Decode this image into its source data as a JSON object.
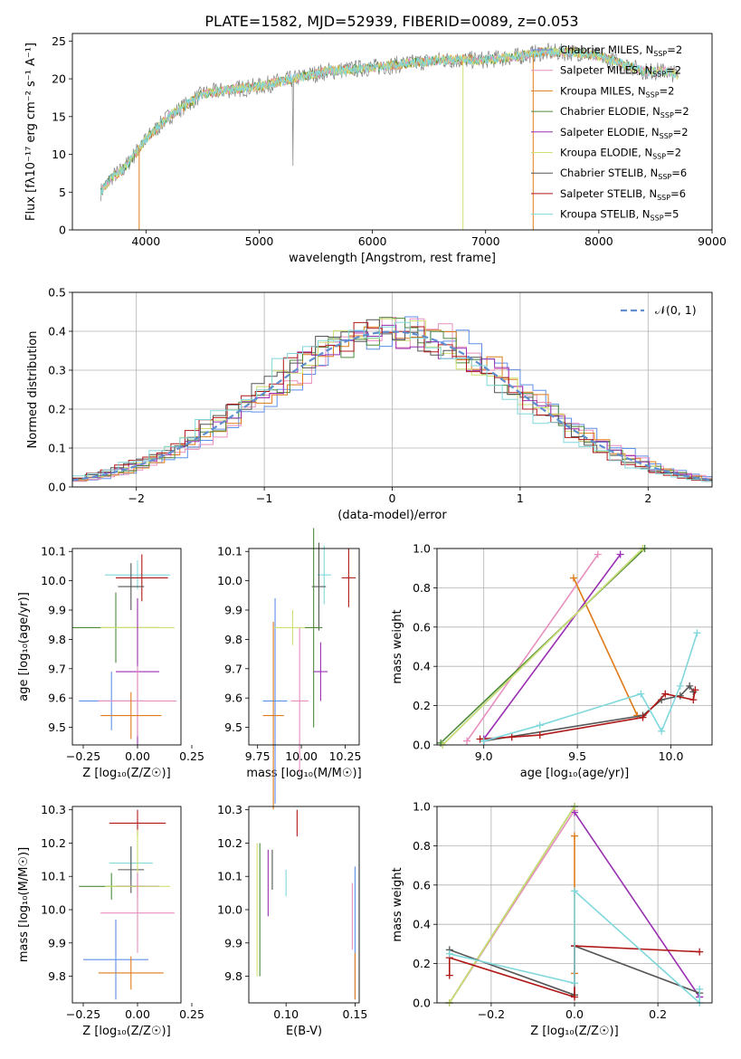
{
  "figure_title": "PLATE=1582, MJD=52939, FIBERID=0089, z=0.053",
  "colors": {
    "Chabrier MILES": "#5f8fe8",
    "Salpeter MILES": "#e88fbf",
    "Kroupa MILES": "#e07b1a",
    "Chabrier ELODIE": "#4c8a3c",
    "Salpeter ELODIE": "#9a2fb2",
    "Kroupa ELODIE": "#cfe070",
    "Chabrier STELIB": "#555555",
    "Salpeter STELIB": "#b01818",
    "Kroupa STELIB": "#80d8dc",
    "data": "#808080",
    "normal": "#5f8fd0"
  },
  "legend_entries": [
    {
      "name": "Chabrier MILES, N",
      "sub": "SSP",
      "tail": "=2",
      "key": "Chabrier MILES"
    },
    {
      "name": "Salpeter MILES, N",
      "sub": "SSP",
      "tail": "=2",
      "key": "Salpeter MILES"
    },
    {
      "name": "Kroupa MILES, N",
      "sub": "SSP",
      "tail": "=2",
      "key": "Kroupa MILES"
    },
    {
      "name": "Chabrier ELODIE, N",
      "sub": "SSP",
      "tail": "=2",
      "key": "Chabrier ELODIE"
    },
    {
      "name": "Salpeter ELODIE, N",
      "sub": "SSP",
      "tail": "=2",
      "key": "Salpeter ELODIE"
    },
    {
      "name": "Kroupa ELODIE, N",
      "sub": "SSP",
      "tail": "=2",
      "key": "Kroupa ELODIE"
    },
    {
      "name": "Chabrier STELIB, N",
      "sub": "SSP",
      "tail": "=6",
      "key": "Chabrier STELIB"
    },
    {
      "name": "Salpeter STELIB, N",
      "sub": "SSP",
      "tail": "=6",
      "key": "Salpeter STELIB"
    },
    {
      "name": "Kroupa STELIB, N",
      "sub": "SSP",
      "tail": "=5",
      "key": "Kroupa STELIB"
    }
  ],
  "chart_data": [
    {
      "id": "spectrum",
      "type": "line",
      "xlabel": "wavelength [Angstrom, rest frame]",
      "ylabel": "Flux [fλ10⁻¹⁷ erg cm⁻² s⁻¹ A⁻¹]",
      "xlim": [
        3350,
        9000
      ],
      "ylim": [
        0,
        26
      ],
      "xticks": [
        4000,
        5000,
        6000,
        7000,
        8000,
        9000
      ],
      "yticks": [
        0,
        5,
        10,
        15,
        20,
        25
      ],
      "legend": "top-right",
      "grid": false,
      "continuum_x": [
        3600,
        3700,
        3800,
        3900,
        4000,
        4100,
        4200,
        4300,
        4400,
        4500,
        4700,
        5000,
        5300,
        5600,
        6000,
        6300,
        6600,
        7000,
        7300,
        7500,
        7800,
        8000,
        8200,
        8400,
        8600,
        8700
      ],
      "continuum_y": [
        5,
        7,
        8,
        10,
        12,
        13.5,
        15,
        16,
        17,
        18,
        18.5,
        19,
        20,
        21,
        21.5,
        22,
        22.5,
        22.5,
        23,
        23.5,
        23.5,
        23,
        22,
        21,
        21,
        20.5
      ]
    },
    {
      "id": "residuals",
      "type": "step",
      "xlabel": "(data-model)/error",
      "ylabel": "Normed distribution",
      "xlim": [
        -2.5,
        2.5
      ],
      "ylim": [
        0,
        0.5
      ],
      "xticks": [
        -2,
        -1,
        0,
        1,
        2
      ],
      "yticks": [
        0.0,
        0.1,
        0.2,
        0.3,
        0.4,
        0.5
      ],
      "legend": "top-right",
      "legend_label": "𝒩(0, 1)",
      "grid": true
    },
    {
      "id": "age_vs_Z",
      "type": "errorbar",
      "xlabel": "Z [log₁₀(Z/Z☉)]",
      "ylabel": "age  [log₁₀(age/yr)]",
      "xlim": [
        -0.3,
        0.2
      ],
      "ylim": [
        9.44,
        10.11
      ],
      "xticks": [
        -0.25,
        0.0,
        0.25
      ],
      "yticks": [
        9.5,
        9.6,
        9.7,
        9.8,
        9.9,
        10.0,
        10.1
      ],
      "points": [
        {
          "s": "Kroupa STELIB",
          "x": 0.0,
          "y": 10.02,
          "ex": 0.15,
          "ey": 0.05
        },
        {
          "s": "Salpeter STELIB",
          "x": 0.02,
          "y": 10.01,
          "ex": 0.12,
          "ey": 0.08
        },
        {
          "s": "Chabrier STELIB",
          "x": -0.03,
          "y": 9.98,
          "ex": 0.06,
          "ey": 0.08
        },
        {
          "s": "Chabrier ELODIE",
          "x": -0.1,
          "y": 9.84,
          "ex": 0.2,
          "ey": 0.12
        },
        {
          "s": "Kroupa ELODIE",
          "x": 0.0,
          "y": 9.84,
          "ex": 0.17,
          "ey": 0.1
        },
        {
          "s": "Salpeter ELODIE",
          "x": 0.0,
          "y": 9.69,
          "ex": 0.1,
          "ey": 0.25
        },
        {
          "s": "Chabrier MILES",
          "x": -0.12,
          "y": 9.59,
          "ex": 0.15,
          "ey": 0.1
        },
        {
          "s": "Salpeter MILES",
          "x": 0.0,
          "y": 9.59,
          "ex": 0.18,
          "ey": 0.12
        },
        {
          "s": "Kroupa MILES",
          "x": -0.03,
          "y": 9.54,
          "ex": 0.14,
          "ey": 0.08
        }
      ]
    },
    {
      "id": "age_vs_mass",
      "type": "errorbar",
      "xlabel": "mass [log₁₀(M/M☉)]",
      "ylabel": "",
      "xlim": [
        9.7,
        10.33
      ],
      "ylim": [
        9.44,
        10.11
      ],
      "xticks": [
        9.75,
        10.0,
        10.25
      ],
      "yticks": [
        9.5,
        9.6,
        9.7,
        9.8,
        9.9,
        10.0,
        10.1
      ],
      "points": [
        {
          "s": "Salpeter STELIB",
          "x": 10.27,
          "y": 10.01,
          "ex": 0.04,
          "ey": 0.1
        },
        {
          "s": "Kroupa STELIB",
          "x": 10.13,
          "y": 10.02,
          "ex": 0.04,
          "ey": 0.1
        },
        {
          "s": "Chabrier STELIB",
          "x": 10.1,
          "y": 9.98,
          "ex": 0.04,
          "ey": 0.15
        },
        {
          "s": "Chabrier MILES",
          "x": 9.85,
          "y": 9.59,
          "ex": 0.07,
          "ey": 0.35
        },
        {
          "s": "Kroupa MILES",
          "x": 9.84,
          "y": 9.54,
          "ex": 0.06,
          "ey": 0.32
        },
        {
          "s": "Kroupa ELODIE",
          "x": 9.95,
          "y": 9.84,
          "ex": 0.11,
          "ey": 0.06
        },
        {
          "s": "Chabrier ELODIE",
          "x": 10.07,
          "y": 9.84,
          "ex": 0.05,
          "ey": 0.34
        },
        {
          "s": "Salpeter ELODIE",
          "x": 10.11,
          "y": 9.69,
          "ex": 0.04,
          "ey": 0.1
        },
        {
          "s": "Salpeter MILES",
          "x": 9.99,
          "y": 9.59,
          "ex": 0.05,
          "ey": 0.25
        }
      ]
    },
    {
      "id": "weight_vs_age",
      "type": "line",
      "xlabel": "age  [log₁₀(age/yr)]",
      "ylabel": "mass weight",
      "xlim": [
        8.75,
        10.22
      ],
      "ylim": [
        0,
        1
      ],
      "xticks": [
        9.0,
        9.5,
        10.0
      ],
      "yticks": [
        0.0,
        0.2,
        0.4,
        0.6,
        0.8,
        1.0
      ],
      "series": [
        {
          "s": "Chabrier MILES",
          "x": [
            8.78,
            9.85
          ],
          "y": [
            0.0,
            1.0
          ]
        },
        {
          "s": "Salpeter MILES",
          "x": [
            8.91,
            9.61
          ],
          "y": [
            0.02,
            0.97
          ]
        },
        {
          "s": "Kroupa MILES",
          "x": [
            9.48,
            9.82
          ],
          "y": [
            0.85,
            0.15
          ]
        },
        {
          "s": "Chabrier ELODIE",
          "x": [
            8.77,
            9.86
          ],
          "y": [
            0.01,
            1.0
          ]
        },
        {
          "s": "Salpeter ELODIE",
          "x": [
            9.0,
            9.73
          ],
          "y": [
            0.03,
            0.97
          ]
        },
        {
          "s": "Kroupa ELODIE",
          "x": [
            8.78,
            9.85
          ],
          "y": [
            0.0,
            1.0
          ]
        },
        {
          "s": "Chabrier STELIB",
          "x": [
            9.0,
            9.85,
            9.95,
            10.05,
            10.1,
            10.12
          ],
          "y": [
            0.02,
            0.15,
            0.23,
            0.25,
            0.3,
            0.27
          ]
        },
        {
          "s": "Salpeter STELIB",
          "x": [
            8.98,
            9.15,
            9.3,
            9.85,
            9.97,
            10.12,
            10.13
          ],
          "y": [
            0.03,
            0.04,
            0.05,
            0.14,
            0.26,
            0.23,
            0.28
          ]
        },
        {
          "s": "Kroupa STELIB",
          "x": [
            9.0,
            9.3,
            9.84,
            9.95,
            10.05,
            10.14
          ],
          "y": [
            0.02,
            0.1,
            0.26,
            0.07,
            0.3,
            0.57
          ]
        }
      ]
    },
    {
      "id": "mass_vs_Z",
      "type": "errorbar",
      "xlabel": "Z [log₁₀(Z/Z☉)]",
      "ylabel": "mass [log₁₀(M/M☉)]",
      "xlim": [
        -0.3,
        0.2
      ],
      "ylim": [
        9.72,
        10.31
      ],
      "xticks": [
        -0.25,
        0.0,
        0.25
      ],
      "yticks": [
        9.8,
        9.9,
        10.0,
        10.1,
        10.2,
        10.3
      ],
      "points": [
        {
          "s": "Salpeter STELIB",
          "x": 0.0,
          "y": 10.26,
          "ex": 0.13,
          "ey": 0.04
        },
        {
          "s": "Kroupa STELIB",
          "x": -0.03,
          "y": 10.14,
          "ex": 0.1,
          "ey": 0.05
        },
        {
          "s": "Chabrier STELIB",
          "x": -0.03,
          "y": 10.12,
          "ex": 0.06,
          "ey": 0.07
        },
        {
          "s": "Chabrier ELODIE",
          "x": -0.12,
          "y": 10.07,
          "ex": 0.15,
          "ey": 0.04
        },
        {
          "s": "Salpeter ELODIE",
          "x": 0.0,
          "y": 10.07,
          "ex": 0.1,
          "ey": 0.04
        },
        {
          "s": "Kroupa ELODIE",
          "x": 0.0,
          "y": 10.07,
          "ex": 0.15,
          "ey": 0.17
        },
        {
          "s": "Salpeter MILES",
          "x": 0.0,
          "y": 9.99,
          "ex": 0.17,
          "ey": 0.12
        },
        {
          "s": "Chabrier MILES",
          "x": -0.1,
          "y": 9.85,
          "ex": 0.15,
          "ey": 0.12
        },
        {
          "s": "Kroupa MILES",
          "x": -0.03,
          "y": 9.81,
          "ex": 0.15,
          "ey": 0.05
        }
      ]
    },
    {
      "id": "mass_vs_EBV",
      "type": "errorbar",
      "xlabel": "E(B-V)",
      "ylabel": "",
      "xlim": [
        0.073,
        0.153
      ],
      "ylim": [
        9.72,
        10.31
      ],
      "xticks": [
        0.1,
        0.15
      ],
      "yticks": [
        9.8,
        9.9,
        10.0,
        10.1,
        10.2,
        10.3
      ],
      "points": [
        {
          "s": "Salpeter STELIB",
          "x": 0.108,
          "y": 10.26,
          "ex": 0.0,
          "ey": 0.04
        },
        {
          "s": "Kroupa STELIB",
          "x": 0.1,
          "y": 10.08,
          "ex": 0.0,
          "ey": 0.04
        },
        {
          "s": "Chabrier STELIB",
          "x": 0.09,
          "y": 10.12,
          "ex": 0.0,
          "ey": 0.06
        },
        {
          "s": "Salpeter ELODIE",
          "x": 0.087,
          "y": 10.08,
          "ex": 0.0,
          "ey": 0.1
        },
        {
          "s": "Chabrier ELODIE",
          "x": 0.081,
          "y": 10.0,
          "ex": 0.0,
          "ey": 0.2
        },
        {
          "s": "Kroupa ELODIE",
          "x": 0.079,
          "y": 10.0,
          "ex": 0.0,
          "ey": 0.2
        },
        {
          "s": "Chabrier MILES",
          "x": 0.15,
          "y": 9.93,
          "ex": 0.0,
          "ey": 0.2
        },
        {
          "s": "Salpeter MILES",
          "x": 0.148,
          "y": 9.98,
          "ex": 0.0,
          "ey": 0.1
        },
        {
          "s": "Kroupa MILES",
          "x": 0.15,
          "y": 9.8,
          "ex": 0.0,
          "ey": 0.07
        }
      ]
    },
    {
      "id": "weight_vs_Z",
      "type": "line",
      "xlabel": "Z [log₁₀(Z/Z☉)]",
      "ylabel": "mass weight",
      "xlim": [
        -0.33,
        0.33
      ],
      "ylim": [
        0,
        1
      ],
      "xticks": [
        -0.2,
        0.0,
        0.2
      ],
      "yticks": [
        0.0,
        0.2,
        0.4,
        0.6,
        0.8,
        1.0
      ],
      "series": [
        {
          "s": "Chabrier MILES",
          "x": [
            -0.3,
            0.0
          ],
          "y": [
            0.0,
            1.0
          ]
        },
        {
          "s": "Salpeter MILES",
          "x": [
            -0.3,
            0.0
          ],
          "y": [
            0.0,
            0.98
          ]
        },
        {
          "s": "Kroupa MILES",
          "x": [
            0.0,
            0.0
          ],
          "y": [
            0.15,
            0.85
          ]
        },
        {
          "s": "Chabrier ELODIE",
          "x": [
            -0.3,
            0.0
          ],
          "y": [
            0.0,
            1.0
          ]
        },
        {
          "s": "Salpeter ELODIE",
          "x": [
            0.3,
            0.0,
            0.3
          ],
          "y": [
            0.03,
            0.97,
            0.03
          ]
        },
        {
          "s": "Kroupa ELODIE",
          "x": [
            -0.3,
            0.0
          ],
          "y": [
            0.0,
            1.0
          ]
        },
        {
          "s": "Chabrier STELIB",
          "x": [
            -0.3,
            0.0,
            0.0,
            0.3
          ],
          "y": [
            0.27,
            0.04,
            0.29,
            0.05
          ]
        },
        {
          "s": "Salpeter STELIB",
          "x": [
            -0.3,
            -0.3,
            0.0,
            0.0,
            0.3
          ],
          "y": [
            0.14,
            0.23,
            0.03,
            0.29,
            0.26
          ]
        },
        {
          "s": "Kroupa STELIB",
          "x": [
            -0.3,
            0.0,
            0.0,
            0.3,
            0.3
          ],
          "y": [
            0.25,
            0.1,
            0.57,
            0.0,
            0.07
          ]
        }
      ]
    }
  ]
}
